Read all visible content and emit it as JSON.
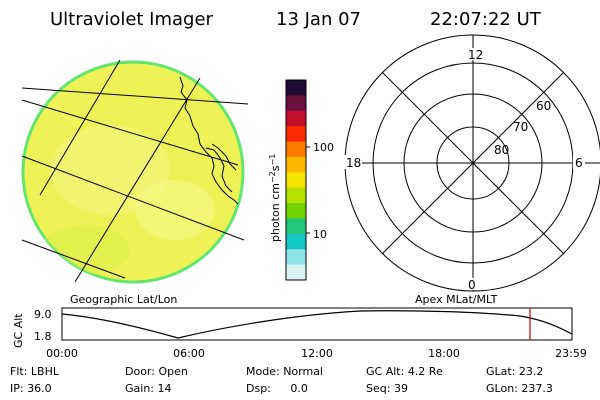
{
  "header": {
    "title": "Ultraviolet Imager",
    "date": "13 Jan 07",
    "time": "22:07:22 UT"
  },
  "colorbar": {
    "unit_main": "photon cm",
    "unit_sup1": "−2",
    "unit_mid": "s",
    "unit_sup2": "−1",
    "ticks": [
      "100",
      "10"
    ],
    "colors": [
      "#1e0b3a",
      "#6b0f3d",
      "#c3102a",
      "#ff2a00",
      "#ff7a00",
      "#ffb800",
      "#f4e600",
      "#b7e300",
      "#6fd400",
      "#22c87b",
      "#14c8c8",
      "#8fe5ea",
      "#d8f1f2"
    ]
  },
  "polar": {
    "lat_labels": [
      "80",
      "70",
      "60"
    ],
    "mlt_labels": {
      "top": "12",
      "right": "6",
      "bottom": "0",
      "left": "18"
    }
  },
  "altitude": {
    "y_title": "GC Alt",
    "y_ticks": [
      "9.0",
      "1.8"
    ],
    "x_ticks": [
      "00:00",
      "06:00",
      "12:00",
      "18:00",
      "23:59"
    ],
    "left_caption": "Geographic Lat/Lon",
    "right_caption": "Apex MLat/MLT"
  },
  "info": {
    "filter_label": "Flt:",
    "filter": "LBHL",
    "door_label": "Door:",
    "door": "Open",
    "mode_label": "Mode:",
    "mode": "Normal",
    "gcalt_label": "GC Alt:",
    "gcalt": "4.2 Re",
    "glat_label": "GLat:",
    "glat": "23.2",
    "ip_label": "IP:",
    "ip": "36.0",
    "gain_label": "Gain:",
    "gain": "14",
    "dsp_label": "Dsp:",
    "dsp": "0.0",
    "seq_label": "Seq:",
    "seq": "39",
    "glon_label": "GLon:",
    "glon": "237.3"
  },
  "colors": {
    "disk_fill": "#eef256",
    "disk_edge": "#63e66e",
    "marker": "#cc0000"
  }
}
